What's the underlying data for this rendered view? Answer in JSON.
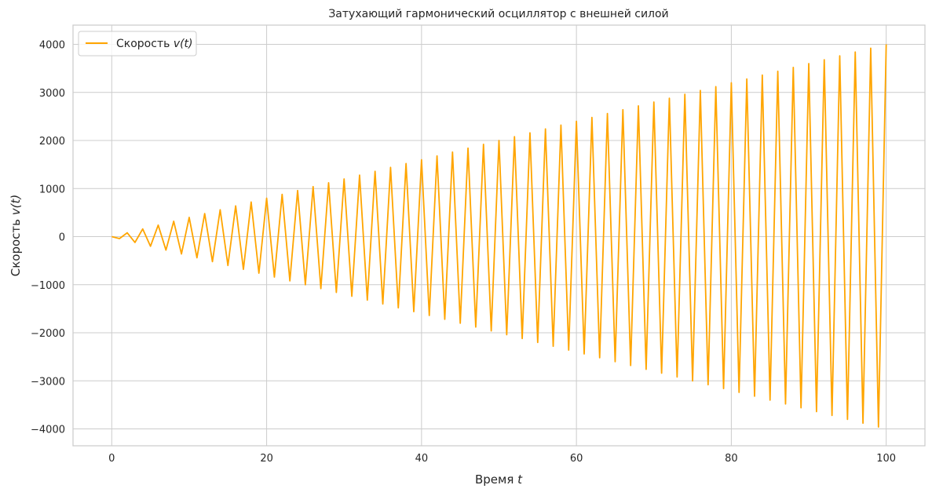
{
  "chart_data": {
    "type": "line",
    "title": "Затухающий гармонический осциллятор с внешней силой",
    "xlabel": "Время t",
    "xlabel_text": "Время ",
    "xlabel_var": "t",
    "ylabel": "Скорость v(t)",
    "ylabel_text": "Скорость ",
    "ylabel_var": "v(t)",
    "xlim": [
      -5,
      105
    ],
    "ylim": [
      -4350,
      4400
    ],
    "x_ticks": [
      0,
      20,
      40,
      60,
      80,
      100
    ],
    "x_tick_labels": [
      "0",
      "20",
      "40",
      "60",
      "80",
      "100"
    ],
    "y_ticks": [
      -4000,
      -3000,
      -2000,
      -1000,
      0,
      1000,
      2000,
      3000,
      4000
    ],
    "y_tick_labels": [
      "−4000",
      "−3000",
      "−2000",
      "−1000",
      "0",
      "1000",
      "2000",
      "3000",
      "4000"
    ],
    "grid": true,
    "legend_position": "top-left",
    "series": [
      {
        "name": "Скорость v(t)",
        "name_text": "Скорость ",
        "name_var": "v(t)",
        "color": "#ffa500",
        "x": [
          0,
          1,
          2,
          3,
          4,
          5,
          6,
          7,
          8,
          9,
          10,
          11,
          12,
          13,
          14,
          15,
          16,
          17,
          18,
          19,
          20,
          21,
          22,
          23,
          24,
          25,
          26,
          27,
          28,
          29,
          30,
          31,
          32,
          33,
          34,
          35,
          36,
          37,
          38,
          39,
          40,
          41,
          42,
          43,
          44,
          45,
          46,
          47,
          48,
          49,
          50,
          51,
          52,
          53,
          54,
          55,
          56,
          57,
          58,
          59,
          60,
          61,
          62,
          63,
          64,
          65,
          66,
          67,
          68,
          69,
          70,
          71,
          72,
          73,
          74,
          75,
          76,
          77,
          78,
          79,
          80,
          81,
          82,
          83,
          84,
          85,
          86,
          87,
          88,
          89,
          90,
          91,
          92,
          93,
          94,
          95,
          96,
          97,
          98,
          99,
          100
        ],
        "y": [
          0,
          -40,
          80,
          -120,
          160,
          -200,
          240,
          -280,
          320,
          -360,
          400,
          -440,
          480,
          -520,
          560,
          -600,
          640,
          -680,
          720,
          -760,
          800,
          -840,
          880,
          -920,
          960,
          -1000,
          1040,
          -1080,
          1120,
          -1160,
          1200,
          -1240,
          1280,
          -1320,
          1360,
          -1400,
          1440,
          -1480,
          1520,
          -1560,
          1600,
          -1640,
          1680,
          -1720,
          1760,
          -1800,
          1840,
          -1880,
          1920,
          -1960,
          2000,
          -2040,
          2080,
          -2120,
          2160,
          -2200,
          2240,
          -2280,
          2320,
          -2360,
          2400,
          -2440,
          2480,
          -2520,
          2560,
          -2600,
          2640,
          -2680,
          2720,
          -2760,
          2800,
          -2840,
          2880,
          -2920,
          2960,
          -3000,
          3040,
          -3080,
          3120,
          -3160,
          3200,
          -3240,
          3280,
          -3320,
          3360,
          -3400,
          3440,
          -3480,
          3520,
          -3560,
          3600,
          -3640,
          3680,
          -3720,
          3760,
          -3800,
          3840,
          -3880,
          3920,
          -3960,
          4000
        ]
      }
    ]
  }
}
